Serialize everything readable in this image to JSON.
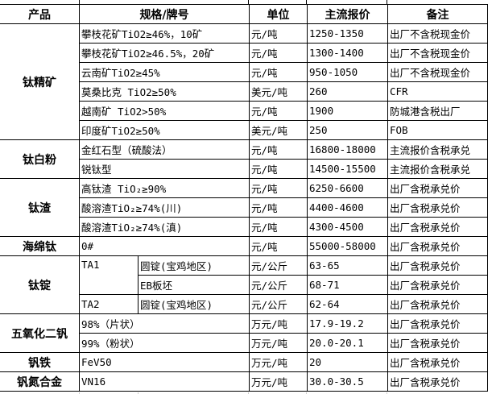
{
  "header": {
    "product": "产品",
    "spec": "规格/牌号",
    "unit": "单位",
    "price": "主流报价",
    "remark": "备注"
  },
  "groups": {
    "titanium_concentrate": {
      "name": "钛精矿",
      "rows": [
        {
          "spec": "攀枝花矿TiO2≥46%，10矿",
          "unit": "元/吨",
          "price": "1250-1350",
          "remark": "出厂不含税现金价"
        },
        {
          "spec": "攀枝花矿TiO2≥46.5%，20矿",
          "unit": "元/吨",
          "price": "1300-1400",
          "remark": "出厂不含税现金价"
        },
        {
          "spec": "云南矿TiO2≥45%",
          "unit": "元/吨",
          "price": "950-1050",
          "remark": "出厂不含税现金价"
        },
        {
          "spec": "莫桑比克 TiO2≥50%",
          "unit": "美元/吨",
          "price": "260",
          "remark": "CFR"
        },
        {
          "spec": "越南矿 TiO2>50%",
          "unit": "元/吨",
          "price": "1900",
          "remark": "防城港含税出厂"
        },
        {
          "spec": "印度矿TiO2≥50%",
          "unit": "美元/吨",
          "price": "250",
          "remark": "FOB"
        }
      ]
    },
    "titanium_dioxide": {
      "name": "钛白粉",
      "rows": [
        {
          "spec": "金红石型（硫酸法）",
          "unit": "元/吨",
          "price": "16800-18000",
          "remark": "主流报价含税承兑"
        },
        {
          "spec": "锐钛型",
          "unit": "元/吨",
          "price": "14500-15500",
          "remark": "主流报价含税承兑"
        }
      ]
    },
    "titanium_slag": {
      "name": "钛渣",
      "rows": [
        {
          "spec": "高钛渣 TiO₂≥90%",
          "unit": "元/吨",
          "price": "6250-6600",
          "remark": "出厂含税承兑价"
        },
        {
          "spec": "酸溶渣TiO₂≥74%(川)",
          "unit": "元/吨",
          "price": "4400-4600",
          "remark": "出厂含税承兑价"
        },
        {
          "spec": "酸溶渣TiO₂≥74%(滇)",
          "unit": "元/吨",
          "price": "4300-4500",
          "remark": "出厂含税承兑价"
        }
      ]
    },
    "sponge_titanium": {
      "name": "海绵钛",
      "rows": [
        {
          "spec": "0#",
          "unit": "元/吨",
          "price": "55000-58000",
          "remark": "出厂含税承兑价"
        }
      ]
    },
    "titanium_ingot": {
      "name": "钛锭",
      "rows": [
        {
          "grade": "TA1",
          "spec": "圆锭(宝鸡地区)",
          "unit": "元/公斤",
          "price": "63-65",
          "remark": "出厂含税承兑价"
        },
        {
          "spec": "EB板坯",
          "unit": "元/公斤",
          "price": "68-71",
          "remark": "出厂含税承兑价"
        },
        {
          "grade": "TA2",
          "spec": "圆锭(宝鸡地区)",
          "unit": "元/公斤",
          "price": "62-64",
          "remark": "出厂含税承兑价"
        }
      ]
    },
    "vanadium_pentoxide": {
      "name": "五氧化二钒",
      "rows": [
        {
          "spec": "98%（片状）",
          "unit": "万元/吨",
          "price": "17.9-19.2",
          "remark": "出厂含税承兑价"
        },
        {
          "spec": "99%（粉状）",
          "unit": "万元/吨",
          "price": "20.0-20.1",
          "remark": "出厂含税承兑价"
        }
      ]
    },
    "ferrovanadium": {
      "name": "钒铁",
      "rows": [
        {
          "spec": "FeV50",
          "unit": "万元/吨",
          "price": "20",
          "remark": "出厂含税承兑价"
        }
      ]
    },
    "vanadium_nitrogen": {
      "name": "钒氮合金",
      "rows": [
        {
          "spec": "VN16",
          "unit": "万元/吨",
          "price": "30.0-30.5",
          "remark": "出厂含税承兑价"
        }
      ]
    }
  }
}
